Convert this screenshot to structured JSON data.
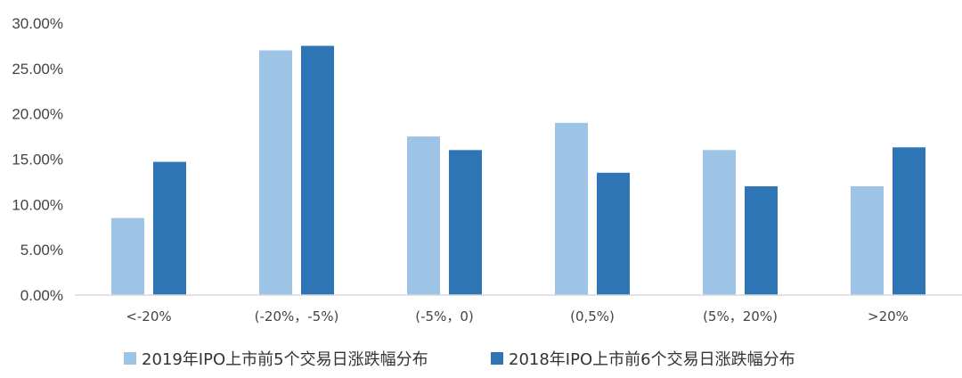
{
  "chart_data": {
    "type": "bar",
    "categories": [
      "<-20%",
      "(-20%，-5%)",
      "(-5%，0)",
      "(0,5%)",
      "(5%，20%)",
      ">20%"
    ],
    "series": [
      {
        "name": "2019年IPO上市前5个交易日涨跌幅分布",
        "color": "#9dc3e6",
        "values": [
          8.5,
          27.0,
          17.5,
          19.0,
          16.0,
          12.0
        ]
      },
      {
        "name": "2018年IPO上市前6个交易日涨跌幅分布",
        "color": "#2e75b6",
        "values": [
          14.7,
          27.5,
          16.0,
          13.5,
          12.0,
          16.3
        ]
      }
    ],
    "y_ticks": [
      "0.00%",
      "5.00%",
      "10.00%",
      "15.00%",
      "20.00%",
      "25.00%",
      "30.00%"
    ],
    "ylim": [
      0,
      30
    ],
    "grid": false,
    "legend_position": "bottom",
    "title": "",
    "xlabel": "",
    "ylabel": ""
  }
}
